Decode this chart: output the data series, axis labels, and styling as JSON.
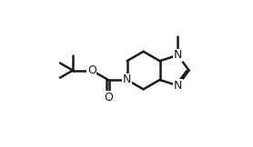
{
  "bg_color": "#ffffff",
  "line_color": "#1a1a1a",
  "line_width": 1.8,
  "font_size": 9,
  "figsize": [
    2.78,
    1.62
  ],
  "dpi": 100,
  "bl": 0.27,
  "xlim": [
    0,
    2.78
  ],
  "ylim": [
    0,
    1.62
  ]
}
